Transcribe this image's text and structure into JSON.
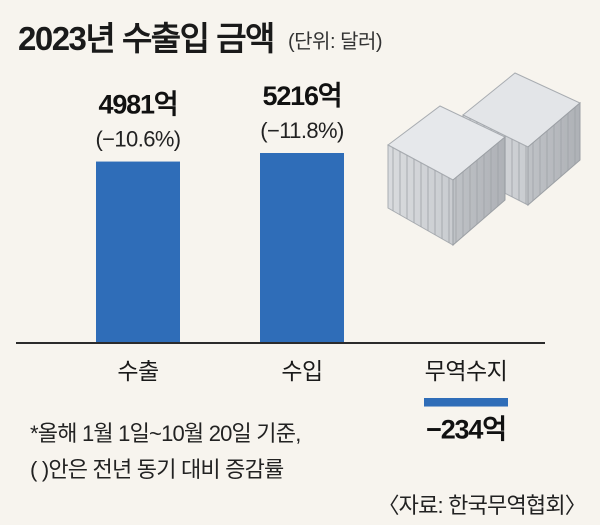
{
  "header": {
    "title": "2023년 수출입 금액",
    "unit": "(단위: 달러)"
  },
  "chart_data": {
    "type": "bar",
    "categories": [
      "수출",
      "수입",
      "무역수지"
    ],
    "values": [
      4981,
      5216,
      -234
    ],
    "value_labels": [
      "4981억",
      "5216억",
      "−234억"
    ],
    "change_labels": [
      "(−10.6%)",
      "(−11.8%)",
      ""
    ],
    "change_pct": [
      -10.6,
      -11.8,
      null
    ],
    "title": "2023년 수출입 금액",
    "ylabel": "",
    "xlabel": "",
    "grid": false,
    "colors": {
      "bar": "#2f6db8",
      "axis": "#2b2b2b",
      "background": "#f7f4ee"
    }
  },
  "notes": {
    "line1": "*올해 1월 1일~10월 20일 기준,",
    "line2": "(    )안은 전년 동기 대비 증감률"
  },
  "source": "〈자료: 한국무역협회〉",
  "decoration": {
    "icon": "shipping-containers-icon"
  }
}
